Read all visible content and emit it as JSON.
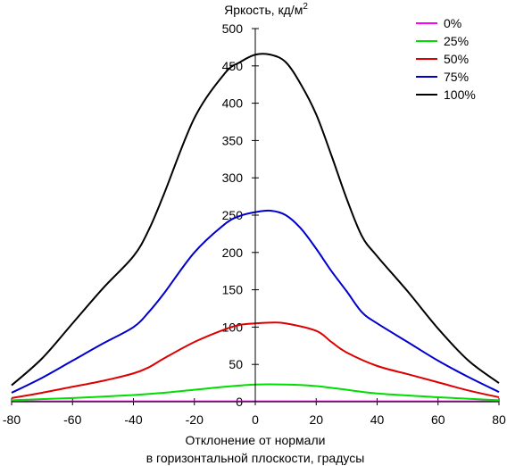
{
  "chart_data": {
    "type": "line",
    "ylabel": "Яркость, кд/м",
    "ylabel_sup": "2",
    "xlabel_line1": "Отклонение от нормали",
    "xlabel_line2": "в горизонтальной плоскости, градусы",
    "xlim": [
      -80,
      80
    ],
    "ylim": [
      0,
      500
    ],
    "xticks": [
      -80,
      -60,
      -40,
      -20,
      0,
      20,
      40,
      60,
      80
    ],
    "yticks": [
      0,
      50,
      100,
      150,
      200,
      250,
      300,
      350,
      400,
      450,
      500
    ],
    "grid": false,
    "legend_position": "top-right",
    "series": [
      {
        "name": "0%",
        "color": "#ff00ff",
        "x": [
          -80,
          -40,
          0,
          40,
          80
        ],
        "y": [
          0.5,
          0.5,
          0.5,
          0.5,
          0.5
        ]
      },
      {
        "name": "25%",
        "color": "#00dd00",
        "x": [
          -80,
          -60,
          -40,
          -30,
          -20,
          -10,
          0,
          10,
          20,
          30,
          40,
          60,
          80
        ],
        "y": [
          2,
          5,
          9,
          12,
          16,
          20,
          23,
          23,
          21,
          16,
          11,
          6,
          2
        ]
      },
      {
        "name": "50%",
        "color": "#dd0000",
        "x": [
          -80,
          -70,
          -60,
          -50,
          -40,
          -35,
          -30,
          -20,
          -10,
          -5,
          0,
          5,
          10,
          20,
          25,
          30,
          40,
          50,
          60,
          70,
          80
        ],
        "y": [
          5,
          12,
          20,
          28,
          38,
          46,
          58,
          80,
          97,
          103,
          105,
          106,
          105,
          95,
          80,
          66,
          48,
          37,
          26,
          15,
          6
        ]
      },
      {
        "name": "75%",
        "color": "#0000cc",
        "x": [
          -80,
          -70,
          -60,
          -50,
          -40,
          -35,
          -30,
          -20,
          -10,
          -5,
          0,
          5,
          10,
          15,
          20,
          25,
          30,
          35,
          40,
          50,
          60,
          70,
          80
        ],
        "y": [
          12,
          32,
          55,
          78,
          100,
          120,
          145,
          200,
          238,
          249,
          254,
          256,
          250,
          232,
          205,
          175,
          148,
          120,
          105,
          80,
          55,
          33,
          13
        ]
      },
      {
        "name": "100%",
        "color": "#000000",
        "x": [
          -80,
          -70,
          -60,
          -50,
          -40,
          -35,
          -30,
          -20,
          -10,
          -5,
          0,
          5,
          10,
          15,
          20,
          25,
          30,
          35,
          40,
          50,
          60,
          70,
          80
        ],
        "y": [
          22,
          58,
          105,
          152,
          195,
          230,
          278,
          380,
          440,
          455,
          465,
          465,
          455,
          425,
          385,
          330,
          272,
          222,
          195,
          148,
          98,
          55,
          25
        ]
      }
    ]
  }
}
